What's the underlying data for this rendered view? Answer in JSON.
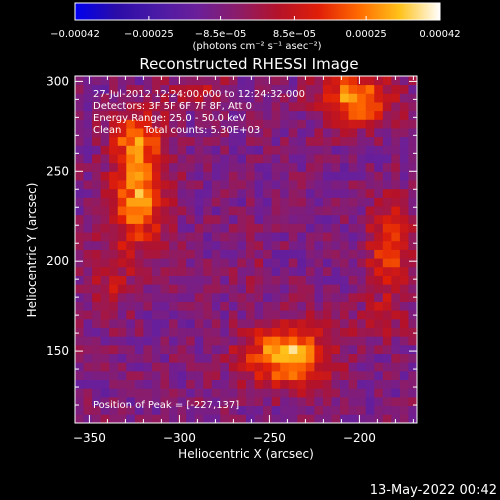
{
  "chart_data": {
    "type": "heatmap",
    "title": "Reconstructed RHESSI Image",
    "xlabel": "Heliocentric X (arcsec)",
    "ylabel": "Heliocentric Y (arcsec)",
    "xlim": [
      -358,
      -168
    ],
    "ylim": [
      110,
      303
    ],
    "xticks": [
      -350,
      -300,
      -250,
      -200
    ],
    "xtick_labels": [
      "−350",
      "−300",
      "−250",
      "−200"
    ],
    "yticks": [
      150,
      200,
      250,
      300
    ],
    "ytick_labels": [
      "150",
      "200",
      "250",
      "300"
    ],
    "colorbar": {
      "range": [
        -0.00042,
        0.00042
      ],
      "ticks": [
        -0.00042,
        -0.00025,
        -8.5e-05,
        8.5e-05,
        0.00025,
        0.00042
      ],
      "tick_labels": [
        "−0.00042",
        "−0.00025",
        "−8.5e−05",
        "8.5e−05",
        "0.00025",
        "0.00042"
      ],
      "units_label": "(photons cm⁻² s⁻¹ asec⁻²)",
      "stops": [
        "#0000f0",
        "#2a0ca8",
        "#4a1aa6",
        "#6a1f9a",
        "#8b1c6a",
        "#b4122a",
        "#e01e08",
        "#ff6a00",
        "#ffc21a",
        "#ffffff"
      ]
    },
    "grid_cells": 40,
    "sources": [
      {
        "x": -240,
        "y": 148,
        "peak": 0.0004,
        "sx": 17,
        "sy": 12
      },
      {
        "x": -322,
        "y": 237,
        "peak": 0.00036,
        "sx": 11,
        "sy": 20
      },
      {
        "x": -323,
        "y": 270,
        "peak": 0.00024,
        "sx": 11,
        "sy": 9
      },
      {
        "x": -183,
        "y": 206,
        "peak": 0.0003,
        "sx": 8,
        "sy": 18
      },
      {
        "x": -202,
        "y": 290,
        "peak": 0.00038,
        "sx": 14,
        "sy": 10
      },
      {
        "x": -290,
        "y": 295,
        "peak": 0.00016,
        "sx": 12,
        "sy": 6
      },
      {
        "x": -338,
        "y": 192,
        "peak": 0.00014,
        "sx": 8,
        "sy": 16
      },
      {
        "x": -190,
        "y": 166,
        "peak": 0.00012,
        "sx": 10,
        "sy": 7
      },
      {
        "x": -262,
        "y": 198,
        "peak": 8e-05,
        "sx": 6,
        "sy": 8
      }
    ],
    "background": -8e-05,
    "annotations": {
      "time_range": "27-Jul-2012 12:24:00.000 to 12:24:32.000",
      "detectors": "Detectors: 3F 5F 6F 7F 8F, Att 0",
      "energy_range": "Energy Range: 25.0 - 50.0 keV",
      "method": "Clean",
      "total_counts": "Total counts: 5.30E+03",
      "peak_position": "Position of Peak = [-227,137]"
    }
  },
  "footer": {
    "timestamp": "13-May-2022 00:42"
  }
}
